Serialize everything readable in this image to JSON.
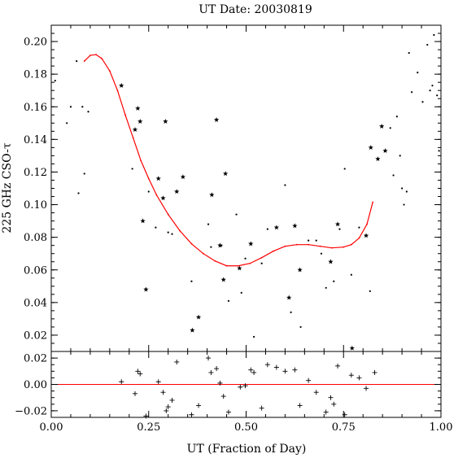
{
  "chart_data": [
    {
      "type": "scatter",
      "panel": "main",
      "title": "UT Date: 20030819",
      "xlabel": "",
      "ylabel": "225 GHz CSO-τ",
      "xlim": [
        0.0,
        1.0
      ],
      "ylim": [
        0.01,
        0.21
      ],
      "yticks": [
        "0.02",
        "0.04",
        "0.06",
        "0.08",
        "0.10",
        "0.12",
        "0.14",
        "0.16",
        "0.18",
        "0.20"
      ],
      "grid": false,
      "series": [
        {
          "name": "",
          "marker": "star",
          "color": "#000000",
          "points": [
            [
              0.18,
              0.173
            ],
            [
              0.215,
              0.146
            ],
            [
              0.222,
              0.159
            ],
            [
              0.228,
              0.151
            ],
            [
              0.235,
              0.09
            ],
            [
              0.243,
              0.048
            ],
            [
              0.275,
              0.116
            ],
            [
              0.287,
              0.104
            ],
            [
              0.293,
              0.151
            ],
            [
              0.322,
              0.108
            ],
            [
              0.338,
              0.117
            ],
            [
              0.362,
              0.023
            ],
            [
              0.378,
              0.031
            ],
            [
              0.412,
              0.106
            ],
            [
              0.424,
              0.152
            ],
            [
              0.433,
              0.075
            ],
            [
              0.442,
              0.054
            ],
            [
              0.447,
              0.119
            ],
            [
              0.483,
              0.061
            ],
            [
              0.512,
              0.076
            ],
            [
              0.578,
              0.086
            ],
            [
              0.61,
              0.043
            ],
            [
              0.625,
              0.087
            ],
            [
              0.638,
              0.06
            ],
            [
              0.717,
              0.065
            ],
            [
              0.735,
              0.088
            ],
            [
              0.772,
              0.012
            ],
            [
              0.808,
              0.081
            ],
            [
              0.82,
              0.135
            ],
            [
              0.838,
              0.128
            ],
            [
              0.848,
              0.148
            ],
            [
              0.857,
              0.133
            ]
          ]
        },
        {
          "name": "",
          "marker": "dot",
          "color": "#000000",
          "points": [
            [
              0.01,
              0.176
            ],
            [
              0.04,
              0.15
            ],
            [
              0.05,
              0.16
            ],
            [
              0.065,
              0.188
            ],
            [
              0.07,
              0.107
            ],
            [
              0.08,
              0.16
            ],
            [
              0.085,
              0.119
            ],
            [
              0.095,
              0.157
            ],
            [
              0.208,
              0.122
            ],
            [
              0.25,
              0.108
            ],
            [
              0.268,
              0.086
            ],
            [
              0.3,
              0.083
            ],
            [
              0.31,
              0.082
            ],
            [
              0.36,
              0.053
            ],
            [
              0.403,
              0.088
            ],
            [
              0.41,
              0.074
            ],
            [
              0.437,
              0.075
            ],
            [
              0.455,
              0.041
            ],
            [
              0.475,
              0.094
            ],
            [
              0.488,
              0.046
            ],
            [
              0.498,
              0.067
            ],
            [
              0.52,
              0.019
            ],
            [
              0.54,
              0.064
            ],
            [
              0.555,
              0.085
            ],
            [
              0.6,
              0.112
            ],
            [
              0.615,
              0.034
            ],
            [
              0.64,
              0.025
            ],
            [
              0.66,
              0.078
            ],
            [
              0.68,
              0.078
            ],
            [
              0.693,
              0.07
            ],
            [
              0.705,
              0.049
            ],
            [
              0.725,
              0.053
            ],
            [
              0.74,
              0.085
            ],
            [
              0.753,
              0.122
            ],
            [
              0.77,
              0.057
            ],
            [
              0.79,
              0.086
            ],
            [
              0.818,
              0.047
            ],
            [
              0.87,
              0.147
            ],
            [
              0.878,
              0.118
            ],
            [
              0.887,
              0.154
            ],
            [
              0.895,
              0.13
            ],
            [
              0.9,
              0.11
            ],
            [
              0.905,
              0.1
            ],
            [
              0.912,
              0.108
            ],
            [
              0.918,
              0.193
            ],
            [
              0.925,
              0.169
            ],
            [
              0.94,
              0.181
            ],
            [
              0.953,
              0.163
            ],
            [
              0.965,
              0.198
            ],
            [
              0.972,
              0.17
            ],
            [
              0.978,
              0.173
            ],
            [
              0.982,
              0.204
            ],
            [
              0.99,
              0.167
            ],
            [
              0.995,
              0.133
            ]
          ]
        }
      ],
      "fit_line": {
        "color": "#ff0000",
        "points": [
          [
            0.085,
            0.188
          ],
          [
            0.1,
            0.1915
          ],
          [
            0.115,
            0.192
          ],
          [
            0.13,
            0.1895
          ],
          [
            0.15,
            0.182
          ],
          [
            0.17,
            0.17
          ],
          [
            0.19,
            0.155
          ],
          [
            0.21,
            0.141
          ],
          [
            0.23,
            0.127
          ],
          [
            0.25,
            0.116
          ],
          [
            0.27,
            0.106
          ],
          [
            0.3,
            0.094
          ],
          [
            0.33,
            0.084
          ],
          [
            0.36,
            0.076
          ],
          [
            0.39,
            0.07
          ],
          [
            0.42,
            0.0655
          ],
          [
            0.45,
            0.0625
          ],
          [
            0.48,
            0.0625
          ],
          [
            0.51,
            0.064
          ],
          [
            0.54,
            0.0675
          ],
          [
            0.57,
            0.0715
          ],
          [
            0.6,
            0.0745
          ],
          [
            0.63,
            0.0755
          ],
          [
            0.66,
            0.0755
          ],
          [
            0.69,
            0.0745
          ],
          [
            0.72,
            0.0735
          ],
          [
            0.75,
            0.074
          ],
          [
            0.77,
            0.0755
          ],
          [
            0.79,
            0.0795
          ],
          [
            0.81,
            0.088
          ],
          [
            0.825,
            0.1015
          ]
        ]
      }
    },
    {
      "type": "scatter",
      "panel": "residuals",
      "xlabel": "UT (Fraction of Day)",
      "ylabel": "",
      "xlim": [
        0.0,
        1.0
      ],
      "ylim": [
        -0.025,
        0.025
      ],
      "xticks": [
        "0.00",
        "0.25",
        "0.50",
        "0.75",
        "1.00"
      ],
      "yticks": [
        "−0.02",
        "0.00",
        "0.02"
      ],
      "zero_line_color": "#ff0000",
      "series": [
        {
          "name": "",
          "marker": "plus",
          "color": "#000000",
          "points": [
            [
              0.18,
              0.002
            ],
            [
              0.215,
              -0.007
            ],
            [
              0.222,
              0.01
            ],
            [
              0.228,
              0.008
            ],
            [
              0.243,
              -0.024
            ],
            [
              0.275,
              0.002
            ],
            [
              0.287,
              -0.006
            ],
            [
              0.295,
              -0.02
            ],
            [
              0.3,
              -0.017
            ],
            [
              0.31,
              -0.012
            ],
            [
              0.322,
              0.017
            ],
            [
              0.36,
              -0.023
            ],
            [
              0.378,
              -0.016
            ],
            [
              0.403,
              0.02
            ],
            [
              0.41,
              0.009
            ],
            [
              0.424,
              0.012
            ],
            [
              0.433,
              0.001
            ],
            [
              0.442,
              -0.009
            ],
            [
              0.455,
              -0.021
            ],
            [
              0.485,
              -0.002
            ],
            [
              0.498,
              -0.001
            ],
            [
              0.512,
              0.011
            ],
            [
              0.52,
              0.009
            ],
            [
              0.54,
              -0.018
            ],
            [
              0.555,
              0.015
            ],
            [
              0.578,
              0.013
            ],
            [
              0.6,
              0.01
            ],
            [
              0.625,
              0.011
            ],
            [
              0.638,
              -0.016
            ],
            [
              0.66,
              0.003
            ],
            [
              0.68,
              -0.006
            ],
            [
              0.705,
              -0.021
            ],
            [
              0.717,
              -0.01
            ],
            [
              0.725,
              -0.015
            ],
            [
              0.735,
              0.014
            ],
            [
              0.753,
              -0.023
            ],
            [
              0.77,
              0.007
            ],
            [
              0.79,
              0.005
            ],
            [
              0.808,
              -0.003
            ],
            [
              0.83,
              0.009
            ]
          ]
        }
      ]
    }
  ]
}
